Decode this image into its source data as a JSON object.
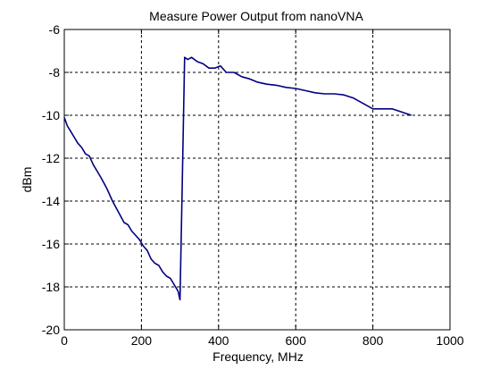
{
  "chart_data": {
    "type": "line",
    "title": "Measure Power Output from nanoVNA",
    "xlabel": "Frequency, MHz",
    "ylabel": "dBm",
    "xlim": [
      0,
      1000
    ],
    "ylim": [
      -20,
      -6
    ],
    "xticks": [
      0,
      200,
      400,
      600,
      800,
      1000
    ],
    "yticks": [
      -20,
      -18,
      -16,
      -14,
      -12,
      -10,
      -8,
      -6
    ],
    "grid": true,
    "line_color": "#000080",
    "series": [
      {
        "x": [
          0,
          8,
          15,
          25,
          35,
          45,
          55,
          65,
          75,
          85,
          95,
          110,
          125,
          140,
          155,
          165,
          175,
          185,
          195,
          205,
          215,
          225,
          235,
          245,
          255,
          265,
          275,
          285,
          295,
          300,
          305,
          312,
          320,
          330,
          345,
          360,
          375,
          390,
          405,
          420,
          440,
          460,
          480,
          500,
          525,
          550,
          575,
          600,
          625,
          650,
          675,
          700,
          725,
          750,
          775,
          800,
          825,
          850,
          875,
          900
        ],
        "y": [
          -10.1,
          -10.5,
          -10.7,
          -11.0,
          -11.3,
          -11.5,
          -11.8,
          -11.9,
          -12.3,
          -12.6,
          -12.9,
          -13.4,
          -14.0,
          -14.5,
          -15.0,
          -15.1,
          -15.4,
          -15.6,
          -15.8,
          -16.1,
          -16.3,
          -16.7,
          -16.9,
          -17.0,
          -17.3,
          -17.5,
          -17.6,
          -17.9,
          -18.2,
          -18.6,
          -14.0,
          -7.3,
          -7.4,
          -7.3,
          -7.5,
          -7.6,
          -7.8,
          -7.8,
          -7.7,
          -8.0,
          -8.0,
          -8.2,
          -8.3,
          -8.45,
          -8.55,
          -8.6,
          -8.7,
          -8.75,
          -8.85,
          -8.95,
          -9.0,
          -9.0,
          -9.05,
          -9.2,
          -9.45,
          -9.7,
          -9.7,
          -9.7,
          -9.85,
          -10.0
        ]
      }
    ]
  }
}
